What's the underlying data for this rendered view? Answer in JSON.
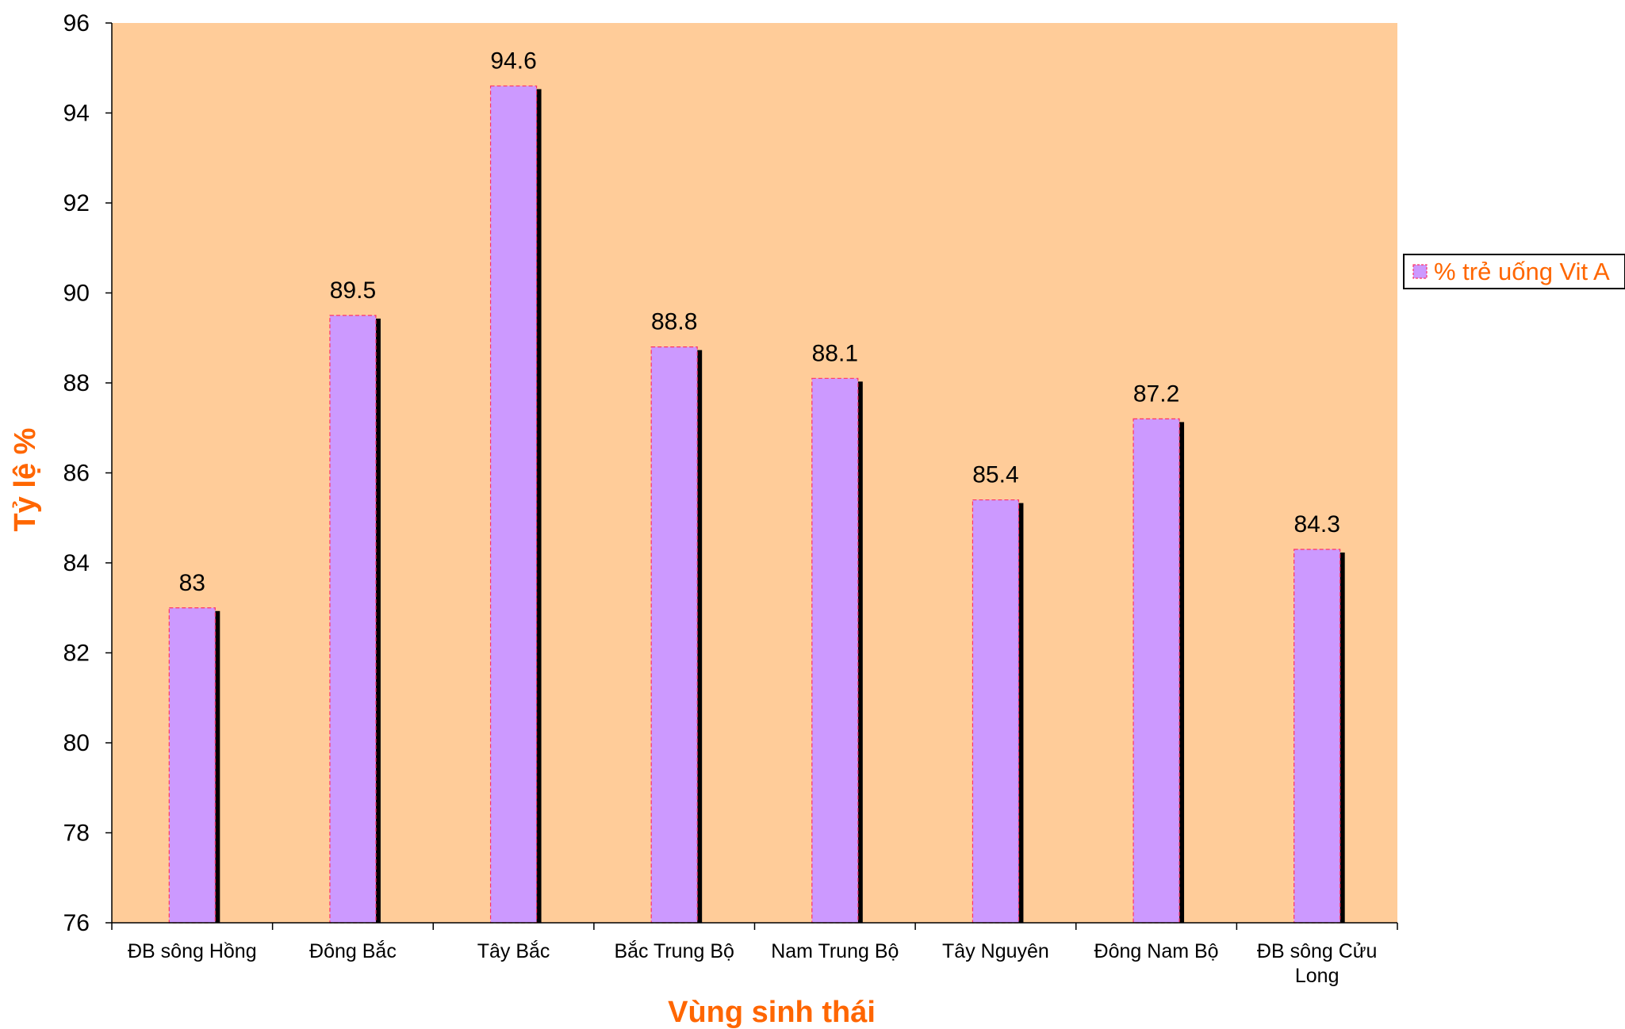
{
  "colors": {
    "plot_background": "#FFCC99",
    "bar_fill": "#CC99FF",
    "bar_border": "#FF3366",
    "bar_shadow": "#000000",
    "axis": "#000000",
    "axis_title": "#FF6600",
    "legend_text": "#FF6600"
  },
  "chart_data": {
    "type": "bar",
    "title": "",
    "xlabel": "Vùng sinh thái",
    "ylabel": "Tỷ lệ %",
    "ylim": [
      76,
      96
    ],
    "yticks": [
      76,
      78,
      80,
      82,
      84,
      86,
      88,
      90,
      92,
      94,
      96
    ],
    "categories": [
      [
        "ĐB sông Hồng"
      ],
      [
        "Đông Bắc"
      ],
      [
        "Tây Bắc"
      ],
      [
        "Bắc Trung Bộ"
      ],
      [
        "Nam Trung Bộ"
      ],
      [
        "Tây Nguyên"
      ],
      [
        "Đông Nam Bộ"
      ],
      [
        "ĐB sông Cửu",
        "Long"
      ]
    ],
    "series": [
      {
        "name": "% trẻ uống Vit A",
        "values": [
          83,
          89.5,
          94.6,
          88.8,
          88.1,
          85.4,
          87.2,
          84.3
        ],
        "labels": [
          "83",
          "89.5",
          "94.6",
          "88.8",
          "88.1",
          "85.4",
          "87.2",
          "84.3"
        ]
      }
    ],
    "grid": false,
    "legend_position": "right"
  }
}
